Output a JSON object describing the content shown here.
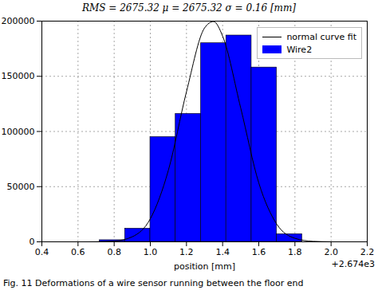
{
  "chart_data": {
    "type": "histogram",
    "title": "RMS = 2675.32 μ = 2675.32 σ = 0.16 [mm]",
    "x_label": "position [mm]",
    "annotations": [
      "+2.674e3"
    ],
    "caption": "Fig. 11 Deformations of a wire sensor running between the floor end",
    "xlim": [
      0.4,
      2.2
    ],
    "xticks": [
      0.4,
      0.6,
      0.8,
      {
        "value": 1.0,
        "label": "1.0"
      },
      1.2,
      1.4,
      1.6,
      1.8,
      {
        "value": 2.0,
        "label": "2.0"
      },
      2.2
    ],
    "ylim": [
      0,
      200000
    ],
    "yticks": [
      0,
      50000,
      100000,
      150000,
      200000
    ],
    "grid": true,
    "legend": "upper right",
    "series": [
      {
        "name": "normal curve fit",
        "type": "line",
        "color": "#000000",
        "x": [
          0.6,
          0.7,
          0.8,
          0.9,
          1.0,
          1.1,
          1.2,
          1.3,
          1.35,
          1.4,
          1.5,
          1.6,
          1.7,
          1.8,
          1.9,
          2.0
        ],
        "values": [
          0,
          70,
          670,
          4560,
          20900,
          64900,
          136000,
          193800,
          199600,
          186400,
          121300,
          53400,
          15900,
          3200,
          440,
          40
        ]
      },
      {
        "name": "Wire2",
        "type": "bar",
        "color": "#0000ff",
        "bins": [
          0.72,
          0.86,
          1.0,
          1.14,
          1.28,
          1.42,
          1.56,
          1.7,
          1.84
        ],
        "values": [
          1500,
          12000,
          95000,
          116000,
          180000,
          187000,
          158000,
          7000
        ]
      }
    ]
  }
}
